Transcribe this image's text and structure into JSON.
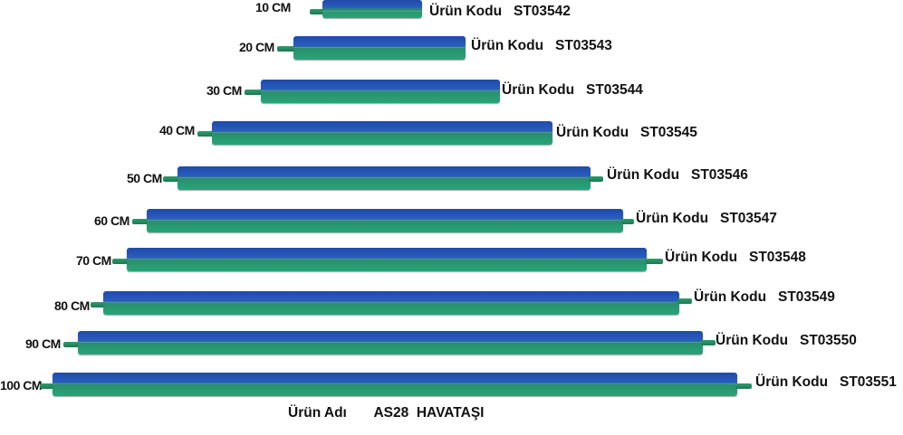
{
  "product_name_label": "Ürün Adı",
  "product_name_value": "AS28  HAVATAŞI",
  "code_label": "Ürün Kodu",
  "colors": {
    "stone_blue": "#1f4aa8",
    "stone_green": "#27a57a",
    "text": "#111111"
  },
  "rows": [
    {
      "size": "10 CM",
      "code": "ST03542"
    },
    {
      "size": "20 CM",
      "code": "ST03543"
    },
    {
      "size": "30 CM",
      "code": "ST03544"
    },
    {
      "size": "40 CM",
      "code": "ST03545"
    },
    {
      "size": "50 CM",
      "code": "ST03546"
    },
    {
      "size": "60 CM",
      "code": "ST03547"
    },
    {
      "size": "70 CM",
      "code": "ST03548"
    },
    {
      "size": "80 CM",
      "code": "ST03549"
    },
    {
      "size": "90 CM",
      "code": "ST03550"
    },
    {
      "size": "100 CM",
      "code": "ST03551"
    }
  ]
}
